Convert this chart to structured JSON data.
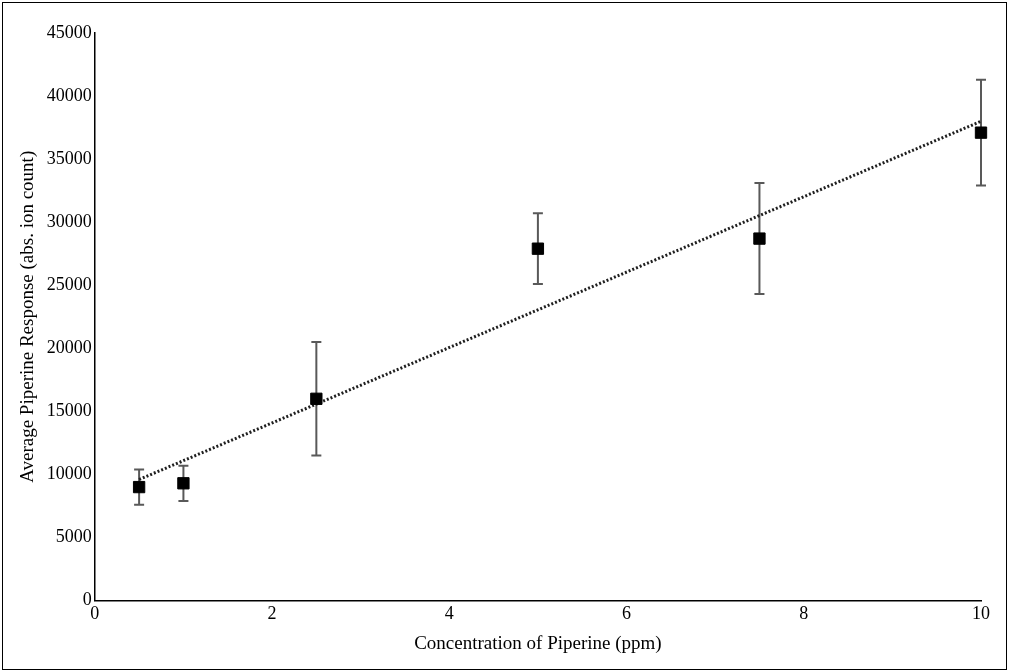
{
  "chart_data": {
    "type": "scatter",
    "xlabel": "Concentration of Piperine (ppm)",
    "ylabel": "Average Piperine Response (abs. ion count)",
    "xlim": [
      0,
      10
    ],
    "xticks": [
      0,
      2,
      4,
      6,
      8,
      10
    ],
    "ylim": [
      0,
      45000
    ],
    "yticks": [
      0,
      5000,
      10000,
      15000,
      20000,
      25000,
      30000,
      35000,
      40000,
      45000
    ],
    "grid": false,
    "legend": false,
    "marker": "square",
    "series": [
      {
        "color": "#000000",
        "x": [
          0.5,
          1,
          2.5,
          5,
          7.5,
          10
        ],
        "values": [
          9000,
          9300,
          16000,
          27900,
          28700,
          37100
        ],
        "errors": [
          1400,
          1400,
          4500,
          2800,
          4400,
          4200
        ]
      },
      {
        "type": "line",
        "color": "#1f1f1f",
        "line_style": "dotted",
        "marker": "none",
        "x": [
          0.5,
          10
        ],
        "values": [
          9600,
          38000
        ]
      }
    ]
  }
}
